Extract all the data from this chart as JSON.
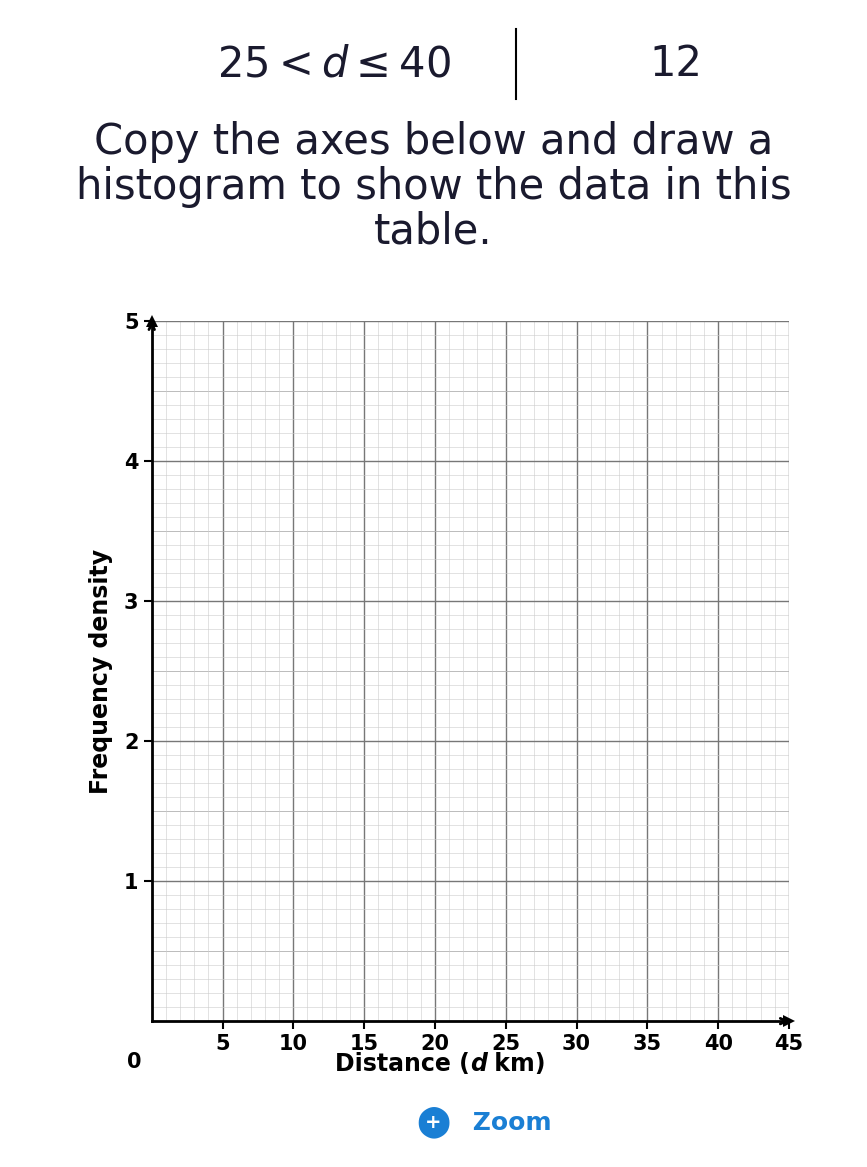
{
  "title_line1": "Copy the axes below and draw a",
  "title_line2": "histogram to show the data in this",
  "title_line3": "table.",
  "header_expr": "25 < d ≤ 40",
  "header_value": "12",
  "ylabel": "Frequency density",
  "xlabel": "Distance (",
  "xlabel_d": "d",
  "xlabel_end": " km)",
  "xlim": [
    0,
    45
  ],
  "ylim": [
    0,
    5
  ],
  "xticks": [
    5,
    10,
    15,
    20,
    25,
    30,
    35,
    40,
    45
  ],
  "yticks": [
    1,
    2,
    3,
    4,
    5
  ],
  "minor_x_interval": 1,
  "minor_y_interval": 0.1,
  "fine_grid_color": "#cccccc",
  "mid_grid_color": "#aaaaaa",
  "major_grid_color": "#777777",
  "background_color": "#ffffff",
  "text_color": "#1a1a2e",
  "zoom_color": "#1a7fd4",
  "title_fontsize": 30,
  "header_fontsize": 30,
  "tick_fontsize": 15,
  "ylabel_fontsize": 17,
  "xlabel_fontsize": 17
}
